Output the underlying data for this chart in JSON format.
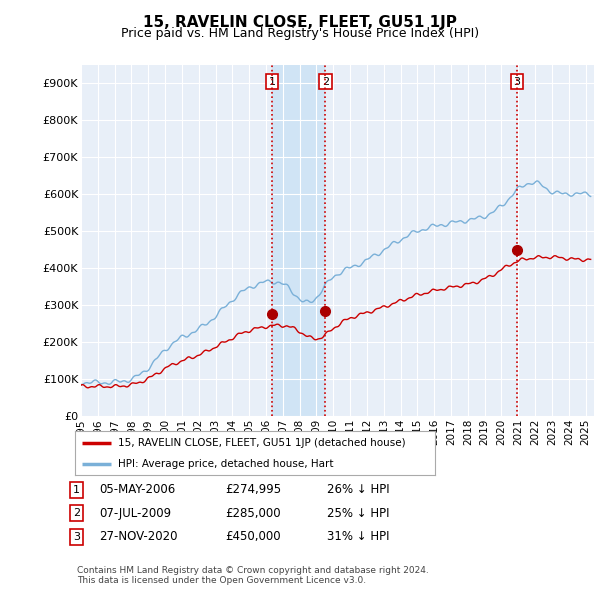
{
  "title": "15, RAVELIN CLOSE, FLEET, GU51 1JP",
  "subtitle": "Price paid vs. HM Land Registry's House Price Index (HPI)",
  "ylabel_ticks": [
    "£0",
    "£100K",
    "£200K",
    "£300K",
    "£400K",
    "£500K",
    "£600K",
    "£700K",
    "£800K",
    "£900K"
  ],
  "ytick_values": [
    0,
    100000,
    200000,
    300000,
    400000,
    500000,
    600000,
    700000,
    800000,
    900000
  ],
  "ylim": [
    0,
    950000
  ],
  "xlim_start": 1995.0,
  "xlim_end": 2025.5,
  "sale_dates": [
    2006.35,
    2009.52,
    2020.91
  ],
  "sale_prices": [
    274995,
    285000,
    450000
  ],
  "sale_labels": [
    "1",
    "2",
    "3"
  ],
  "vline_color": "#cc0000",
  "sale_marker_color": "#aa0000",
  "hpi_line_color": "#7ab0d8",
  "price_line_color": "#cc0000",
  "bg_color": "#ffffff",
  "plot_bg_color": "#e8eff8",
  "grid_color": "#ffffff",
  "shade_color": "#d0e4f5",
  "legend_label_red": "15, RAVELIN CLOSE, FLEET, GU51 1JP (detached house)",
  "legend_label_blue": "HPI: Average price, detached house, Hart",
  "table_rows": [
    {
      "num": "1",
      "date": "05-MAY-2006",
      "price": "£274,995",
      "hpi": "26% ↓ HPI"
    },
    {
      "num": "2",
      "date": "07-JUL-2009",
      "price": "£285,000",
      "hpi": "25% ↓ HPI"
    },
    {
      "num": "3",
      "date": "27-NOV-2020",
      "price": "£450,000",
      "hpi": "31% ↓ HPI"
    }
  ],
  "footer": "Contains HM Land Registry data © Crown copyright and database right 2024.\nThis data is licensed under the Open Government Licence v3.0."
}
